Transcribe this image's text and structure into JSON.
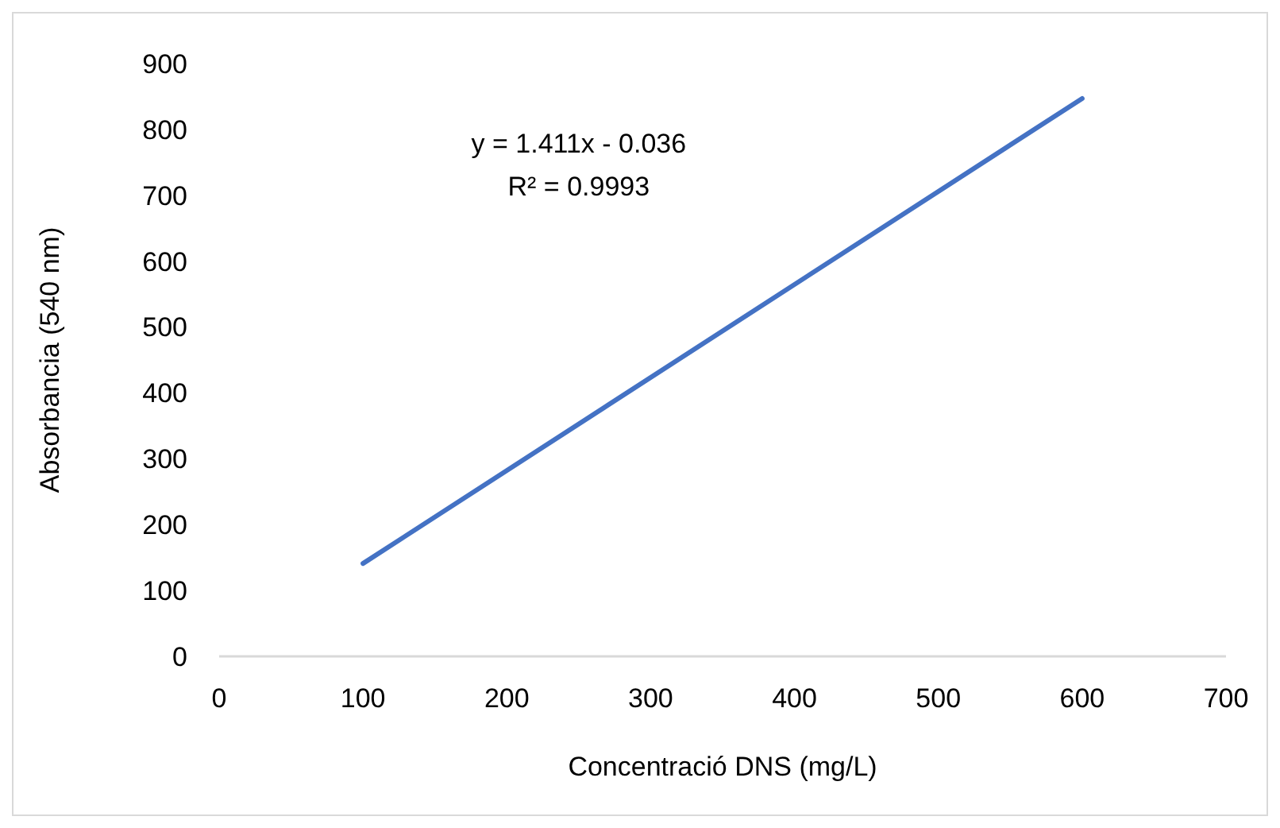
{
  "chart_data": {
    "type": "line",
    "xlabel": "Concentració DNS (mg/L)",
    "ylabel": "Absorbancia (540 nm)",
    "x": [
      100,
      600
    ],
    "series": [
      {
        "color": "#4472c4",
        "values": [
          141,
          847
        ]
      }
    ],
    "xlim": [
      0,
      700
    ],
    "xticks": [
      0,
      100,
      200,
      300,
      400,
      500,
      600,
      700
    ],
    "ylim": [
      0,
      900
    ],
    "yticks": [
      0,
      100,
      200,
      300,
      400,
      500,
      600,
      700,
      800,
      900
    ],
    "grid": false,
    "marker": "none",
    "line_style": "solid",
    "annotations": [
      "y = 1.411x - 0.036",
      "R² = 0.9993"
    ]
  }
}
